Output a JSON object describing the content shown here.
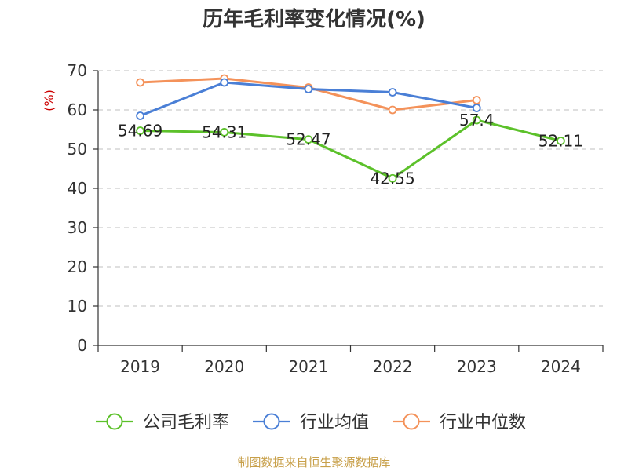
{
  "chart_data": {
    "type": "line",
    "title": "历年毛利率变化情况(%)",
    "ylabel": "(%)",
    "xlabel": "",
    "categories": [
      "2019",
      "2020",
      "2021",
      "2022",
      "2023",
      "2024"
    ],
    "ylim": [
      0,
      70
    ],
    "yticks": [
      0,
      10,
      20,
      30,
      40,
      50,
      60,
      70
    ],
    "grid": true,
    "legend_position": "bottom",
    "series": [
      {
        "name": "公司毛利率",
        "color": "#5cc12a",
        "values": [
          54.69,
          54.31,
          52.47,
          42.55,
          57.4,
          52.11
        ],
        "labels": [
          "54.69",
          "54.31",
          "52.47",
          "42.55",
          "57.4",
          "52.11"
        ]
      },
      {
        "name": "行业均值",
        "color": "#4a7fd6",
        "values": [
          58.5,
          67.0,
          65.3,
          64.5,
          60.5,
          null
        ],
        "labels": []
      },
      {
        "name": "行业中位数",
        "color": "#f4925a",
        "values": [
          67.0,
          68.0,
          65.7,
          60.0,
          62.5,
          null
        ],
        "labels": []
      }
    ]
  },
  "source": "制图数据来自恒生聚源数据库"
}
